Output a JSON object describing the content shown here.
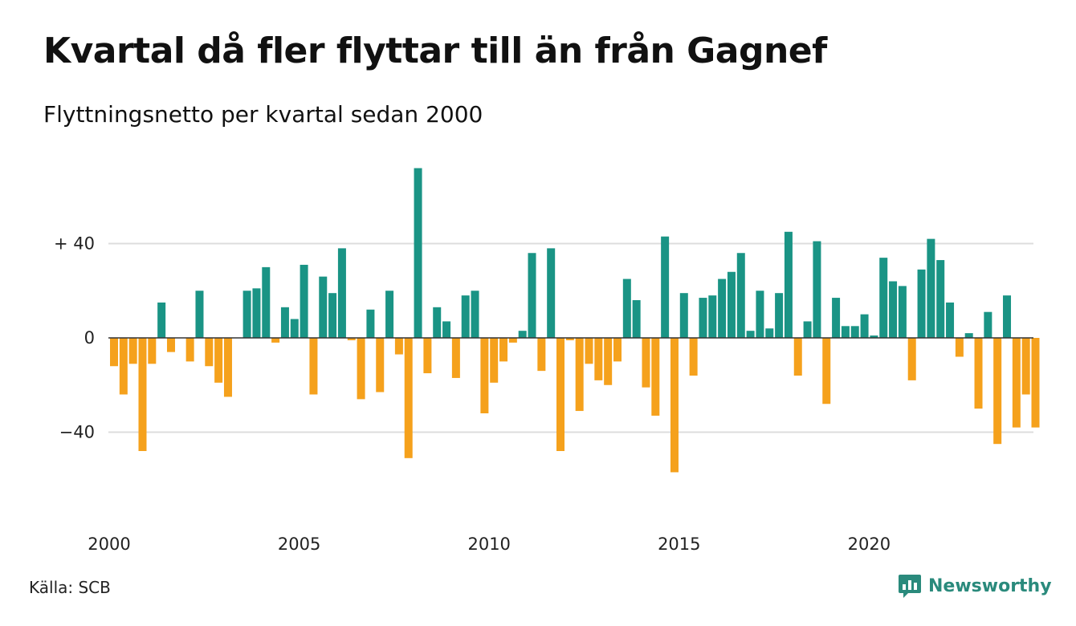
{
  "title": "Kvartal då fler flyttar till än från Gagnef",
  "subtitle": "Flyttningsnetto per kvartal sedan 2000",
  "source": "Källa: SCB",
  "brand": "Newsworthy",
  "colors": {
    "positive": "#1a9485",
    "negative": "#f5a11c",
    "grid": "#dddddd",
    "axis": "#333333",
    "brand": "#2a8a7c"
  },
  "icons": {
    "brand": "newsworthy-logo-icon"
  },
  "chart_data": {
    "type": "bar",
    "x_start": "2000 Q1",
    "quarters_per_year": 4,
    "x_ticks": [
      "2000",
      "2005",
      "2010",
      "2015",
      "2020"
    ],
    "y_ticks": [
      {
        "value": 40,
        "label": "+ 40"
      },
      {
        "value": 0,
        "label": "0"
      },
      {
        "value": -40,
        "label": "−40"
      }
    ],
    "ylim": [
      -72,
      72
    ],
    "grid": true,
    "values": [
      -12,
      -24,
      -11,
      -48,
      -11,
      15,
      -6,
      0,
      -10,
      20,
      -12,
      -19,
      -25,
      0,
      20,
      21,
      30,
      -2,
      13,
      8,
      31,
      -24,
      26,
      19,
      38,
      -1,
      -26,
      12,
      -23,
      20,
      -7,
      -51,
      72,
      -15,
      13,
      7,
      -17,
      18,
      20,
      -32,
      -19,
      -10,
      -2,
      3,
      36,
      -14,
      38,
      -48,
      -1,
      -31,
      -11,
      -18,
      -20,
      -10,
      25,
      16,
      -21,
      -33,
      43,
      -57,
      19,
      -16,
      17,
      18,
      25,
      28,
      36,
      3,
      20,
      4,
      19,
      45,
      -16,
      7,
      41,
      -28,
      17,
      5,
      5,
      10,
      1,
      34,
      24,
      22,
      -18,
      29,
      42,
      33,
      15,
      -8,
      2,
      -30,
      11,
      -45,
      18,
      -38,
      -24,
      -38
    ]
  }
}
